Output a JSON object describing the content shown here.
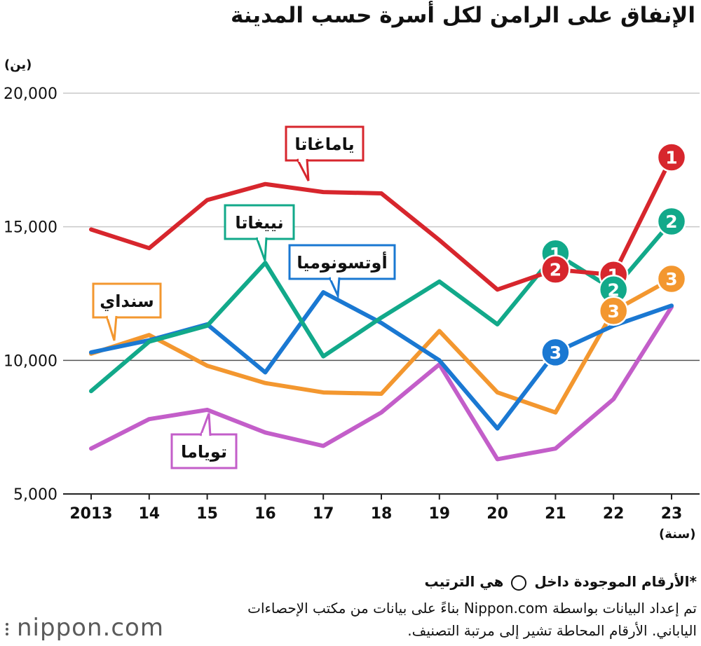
{
  "header": {
    "title": "الإنفاق على الرامن لكل أسرة حسب المدينة",
    "y_unit": "(ين)",
    "x_unit": "(سنة)"
  },
  "notes": {
    "rank_note_before": "*الأرقام الموجودة داخل",
    "rank_note_after": "هي الترتيب",
    "source": "تم إعداد البيانات بواسطة Nippon.com بناءً على بيانات من مكتب الإحصاءات الياباني. الأرقام المحاطة تشير إلى مرتبة التصنيف."
  },
  "logo": {
    "text": "nippon.com"
  },
  "chart_data": {
    "type": "line",
    "title": "الإنفاق على الرامن لكل أسرة حسب المدينة",
    "ylabel": "(ين)",
    "xlabel": "(سنة)",
    "x": [
      "2013",
      "14",
      "15",
      "16",
      "17",
      "18",
      "19",
      "20",
      "21",
      "22",
      "23"
    ],
    "ylim": [
      5000,
      20000
    ],
    "yticks": [
      5000,
      10000,
      15000,
      20000
    ],
    "ytick_labels": [
      "5,000",
      "10,000",
      "15,000",
      "20,000"
    ],
    "grid": true,
    "series": [
      {
        "name": "ياماغاتا",
        "color": "#d7262d",
        "values": [
          14900,
          14200,
          16000,
          16600,
          16300,
          16250,
          14500,
          12650,
          13400,
          13200,
          17600
        ]
      },
      {
        "name": "نييغاتا",
        "color": "#12a98a",
        "values": [
          8850,
          10700,
          11300,
          13650,
          10150,
          11600,
          12950,
          11350,
          14000,
          12650,
          15200
        ]
      },
      {
        "name": "أوتسونوميا",
        "color": "#1a78d2",
        "values": [
          10300,
          10750,
          11350,
          9550,
          12550,
          11400,
          10000,
          7450,
          10300,
          11300,
          12050
        ]
      },
      {
        "name": "سنداي",
        "color": "#f3972f",
        "values": [
          10250,
          10950,
          9800,
          9150,
          8800,
          8750,
          11100,
          8800,
          8050,
          11850,
          13050
        ]
      },
      {
        "name": "توياما",
        "color": "#c35ec9",
        "values": [
          6700,
          7800,
          8150,
          7300,
          6800,
          8050,
          9850,
          6300,
          6700,
          8550,
          12000
        ]
      }
    ],
    "rank_badges": [
      {
        "series": "نييغاتا",
        "x": "21",
        "rank": "1"
      },
      {
        "series": "ياماغاتا",
        "x": "21",
        "rank": "2"
      },
      {
        "series": "أوتسونوميا",
        "x": "21",
        "rank": "3"
      },
      {
        "series": "ياماغاتا",
        "x": "22",
        "rank": "1"
      },
      {
        "series": "نييغاتا",
        "x": "22",
        "rank": "2"
      },
      {
        "series": "سنداي",
        "x": "22",
        "rank": "3"
      },
      {
        "series": "ياماغاتا",
        "x": "23",
        "rank": "1"
      },
      {
        "series": "نييغاتا",
        "x": "23",
        "rank": "2"
      },
      {
        "series": "سنداي",
        "x": "23",
        "rank": "3"
      }
    ]
  }
}
